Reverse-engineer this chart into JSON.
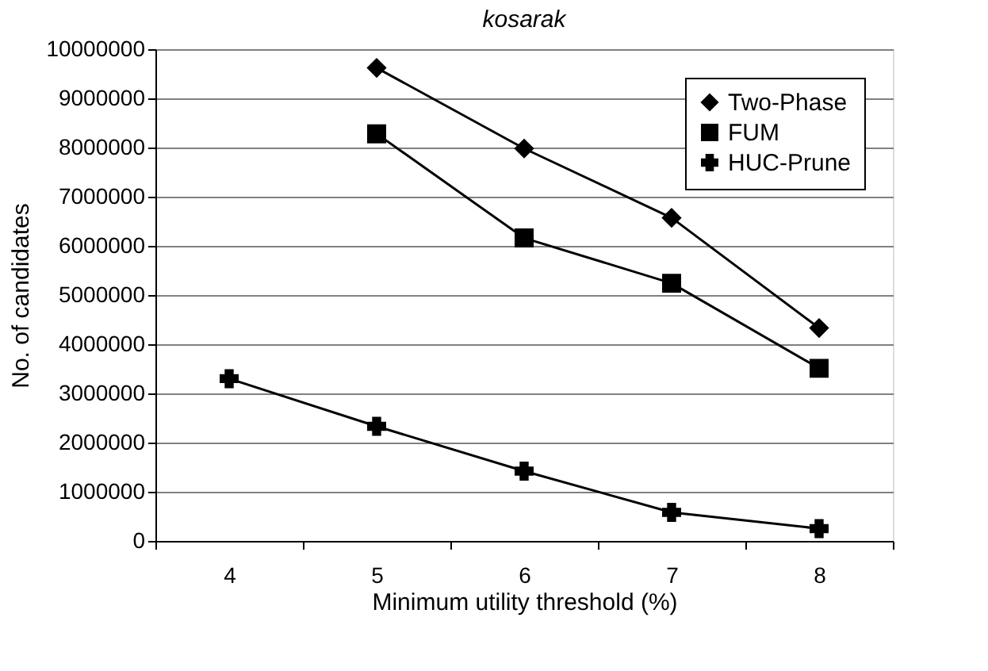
{
  "chart_data": {
    "type": "line",
    "title": "kosarak",
    "xlabel": "Minimum utility threshold (%)",
    "ylabel": "No. of candidates",
    "categories": [
      "4",
      "5",
      "6",
      "7",
      "8"
    ],
    "series": [
      {
        "name": "Two-Phase",
        "color": "#000000",
        "marker": "diamond",
        "values": [
          null,
          9620000,
          7980000,
          6570000,
          4330000
        ]
      },
      {
        "name": "FUM",
        "color": "#000000",
        "marker": "square",
        "values": [
          null,
          8280000,
          6160000,
          5240000,
          3510000
        ]
      },
      {
        "name": "HUC-Prune",
        "color": "#000000",
        "marker": "cross",
        "values": [
          3300000,
          2330000,
          1420000,
          580000,
          250000
        ]
      }
    ],
    "ylim": [
      0,
      10000000
    ],
    "yticks": [
      0,
      1000000,
      2000000,
      3000000,
      4000000,
      5000000,
      6000000,
      7000000,
      8000000,
      9000000,
      10000000
    ],
    "grid": "y",
    "legend": "top right",
    "line_style": "solid"
  }
}
